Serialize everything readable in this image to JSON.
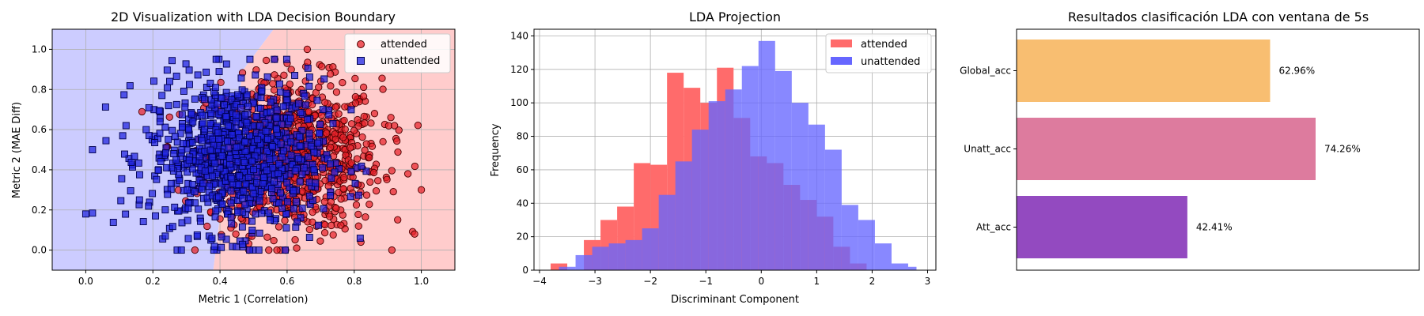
{
  "chart_data": [
    {
      "type": "scatter",
      "title": "2D Visualization with LDA Decision Boundary",
      "xlabel": "Metric 1 (Correlation)",
      "ylabel": "Metric 2 (MAE Diff)",
      "xlim": [
        -0.1,
        1.1
      ],
      "ylim": [
        -0.1,
        1.1
      ],
      "xticks": [
        "0.0",
        "0.2",
        "0.4",
        "0.6",
        "0.8",
        "1.0"
      ],
      "yticks": [
        "0.0",
        "0.2",
        "0.4",
        "0.6",
        "0.8",
        "1.0"
      ],
      "grid": true,
      "legend_position": "top-right",
      "decision_boundary_x": [
        [
          -0.1,
          0.38
        ],
        [
          0.3,
          0.41
        ],
        [
          0.6,
          0.44
        ],
        [
          0.9,
          0.47
        ],
        [
          1.1,
          0.56
        ]
      ],
      "regions": [
        {
          "name": "unattended",
          "color": "#ccccff",
          "side": "left"
        },
        {
          "name": "attended",
          "color": "#ffcccc",
          "side": "right"
        }
      ],
      "series": [
        {
          "name": "attended",
          "marker": "circle",
          "color": "#e8212a",
          "points_summary": {
            "x_mean": 0.62,
            "x_sd": 0.13,
            "y_mean": 0.47,
            "y_sd": 0.19,
            "count": 900
          }
        },
        {
          "name": "unattended",
          "marker": "square",
          "color": "#1f22e0",
          "points_summary": {
            "x_mean": 0.45,
            "x_sd": 0.13,
            "y_mean": 0.47,
            "y_sd": 0.19,
            "count": 900
          }
        }
      ],
      "outliers": {
        "unattended": [
          [
            0.0,
            0.18
          ],
          [
            0.12,
            0.62
          ],
          [
            0.16,
            0.25
          ],
          [
            0.18,
            0.6
          ],
          [
            0.25,
            0.84
          ]
        ],
        "attended": [
          [
            0.98,
            0.08
          ],
          [
            1.0,
            0.3
          ],
          [
            0.6,
            0.93
          ],
          [
            0.66,
            1.0
          ],
          [
            0.82,
            0.04
          ],
          [
            0.92,
            0.62
          ],
          [
            0.96,
            0.38
          ]
        ]
      }
    },
    {
      "type": "bar",
      "subtype": "histogram",
      "title": "LDA Projection",
      "xlabel": "Discriminant Component",
      "ylabel": "Frequency",
      "xlim": [
        -4.1,
        3.15
      ],
      "ylim": [
        0,
        144
      ],
      "xticks": [
        "−4",
        "−3",
        "−2",
        "−1",
        "0",
        "1",
        "2",
        "3"
      ],
      "yticks": [
        "0",
        "20",
        "40",
        "60",
        "80",
        "100",
        "120",
        "140"
      ],
      "grid": true,
      "legend_position": "top-right",
      "series": [
        {
          "name": "attended",
          "color": "#ff6b6b",
          "bin_edges": [
            -3.8,
            -3.5,
            -3.2,
            -2.9,
            -2.6,
            -2.3,
            -2.0,
            -1.7,
            -1.4,
            -1.1,
            -0.8,
            -0.5,
            -0.2,
            0.1,
            0.4,
            0.7,
            1.0,
            1.3,
            1.6,
            1.9
          ],
          "counts": [
            4,
            0,
            18,
            30,
            38,
            64,
            63,
            118,
            109,
            100,
            121,
            91,
            68,
            64,
            51,
            42,
            32,
            14,
            4
          ]
        },
        {
          "name": "unattended",
          "color": "#6666ff",
          "bin_edges": [
            -3.65,
            -3.35,
            -3.05,
            -2.75,
            -2.45,
            -2.15,
            -1.85,
            -1.55,
            -1.25,
            -0.95,
            -0.65,
            -0.35,
            -0.05,
            0.25,
            0.55,
            0.85,
            1.15,
            1.45,
            1.75,
            2.05,
            2.35,
            2.65,
            2.8
          ],
          "counts": [
            2,
            9,
            14,
            16,
            18,
            25,
            45,
            65,
            84,
            101,
            108,
            122,
            137,
            119,
            100,
            87,
            72,
            39,
            30,
            16,
            4,
            2
          ]
        }
      ]
    },
    {
      "type": "bar",
      "orientation": "horizontal",
      "title": "Resultados clasificación LDA con ventana de 5s",
      "categories": [
        "Global_acc",
        "Unatt_acc",
        "Att_acc"
      ],
      "values": [
        62.96,
        74.26,
        42.41
      ],
      "labels": [
        "62.96%",
        "74.26%",
        "42.41%"
      ],
      "colors": [
        "#f8be71",
        "#dd7b9e",
        "#934ac0"
      ],
      "xlim": [
        0,
        100
      ]
    }
  ]
}
